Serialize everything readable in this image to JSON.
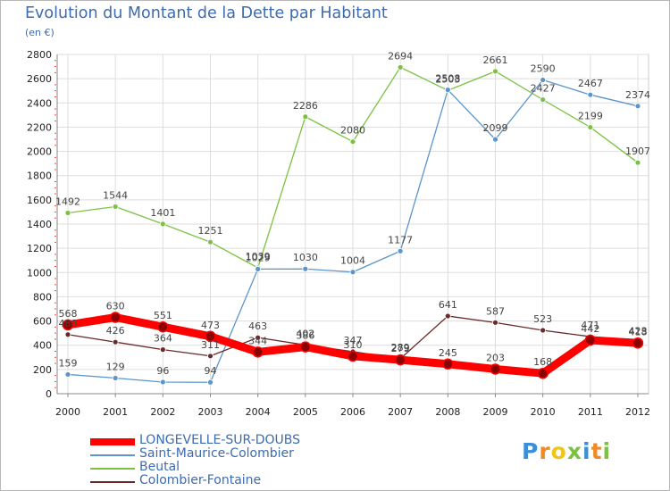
{
  "header": {
    "title": "Evolution du Montant de la Dette par Habitant",
    "subtitle": "(en €)"
  },
  "chart_data": {
    "type": "line",
    "title": "Evolution du Montant de la Dette par Habitant",
    "ylabel": "(en €)",
    "xlabel": "",
    "x": [
      "2000",
      "2001",
      "2002",
      "2003",
      "2004",
      "2005",
      "2006",
      "2007",
      "2008",
      "2009",
      "2010",
      "2011",
      "2012"
    ],
    "ylim": [
      0,
      2800
    ],
    "yticks": [
      0,
      200,
      400,
      600,
      800,
      1000,
      1200,
      1400,
      1600,
      1800,
      2000,
      2200,
      2400,
      2600,
      2800
    ],
    "grid": true,
    "legend_position": "bottom-left",
    "series": [
      {
        "name": "LONGEVELLE-SUR-DOUBS",
        "color": "#ff0000",
        "values": [
          568,
          630,
          551,
          473,
          344,
          386,
          310,
          279,
          245,
          203,
          168,
          442,
          418
        ]
      },
      {
        "name": "Saint-Maurice-Colombier",
        "color": "#5b95cc",
        "values": [
          159,
          129,
          96,
          94,
          1029,
          1030,
          1004,
          1177,
          2508,
          2099,
          2590,
          2467,
          2374
        ]
      },
      {
        "name": "Beutal",
        "color": "#7cc242",
        "values": [
          1492,
          1544,
          1401,
          1251,
          1039,
          2286,
          2080,
          2694,
          2503,
          2661,
          2427,
          2199,
          1907
        ]
      },
      {
        "name": "Colombier-Fontaine",
        "color": "#6b2a2a",
        "values": [
          488,
          426,
          364,
          311,
          463,
          402,
          347,
          289,
          641,
          587,
          523,
          471,
          423
        ]
      }
    ]
  },
  "brand": {
    "letters": [
      "P",
      "r",
      "o",
      "x",
      "i",
      "t",
      "i"
    ],
    "colors": [
      "#3a8fd8",
      "#f08a24",
      "#f0c419",
      "#7cc242",
      "#3a8fd8",
      "#f08a24",
      "#7cc242"
    ]
  }
}
